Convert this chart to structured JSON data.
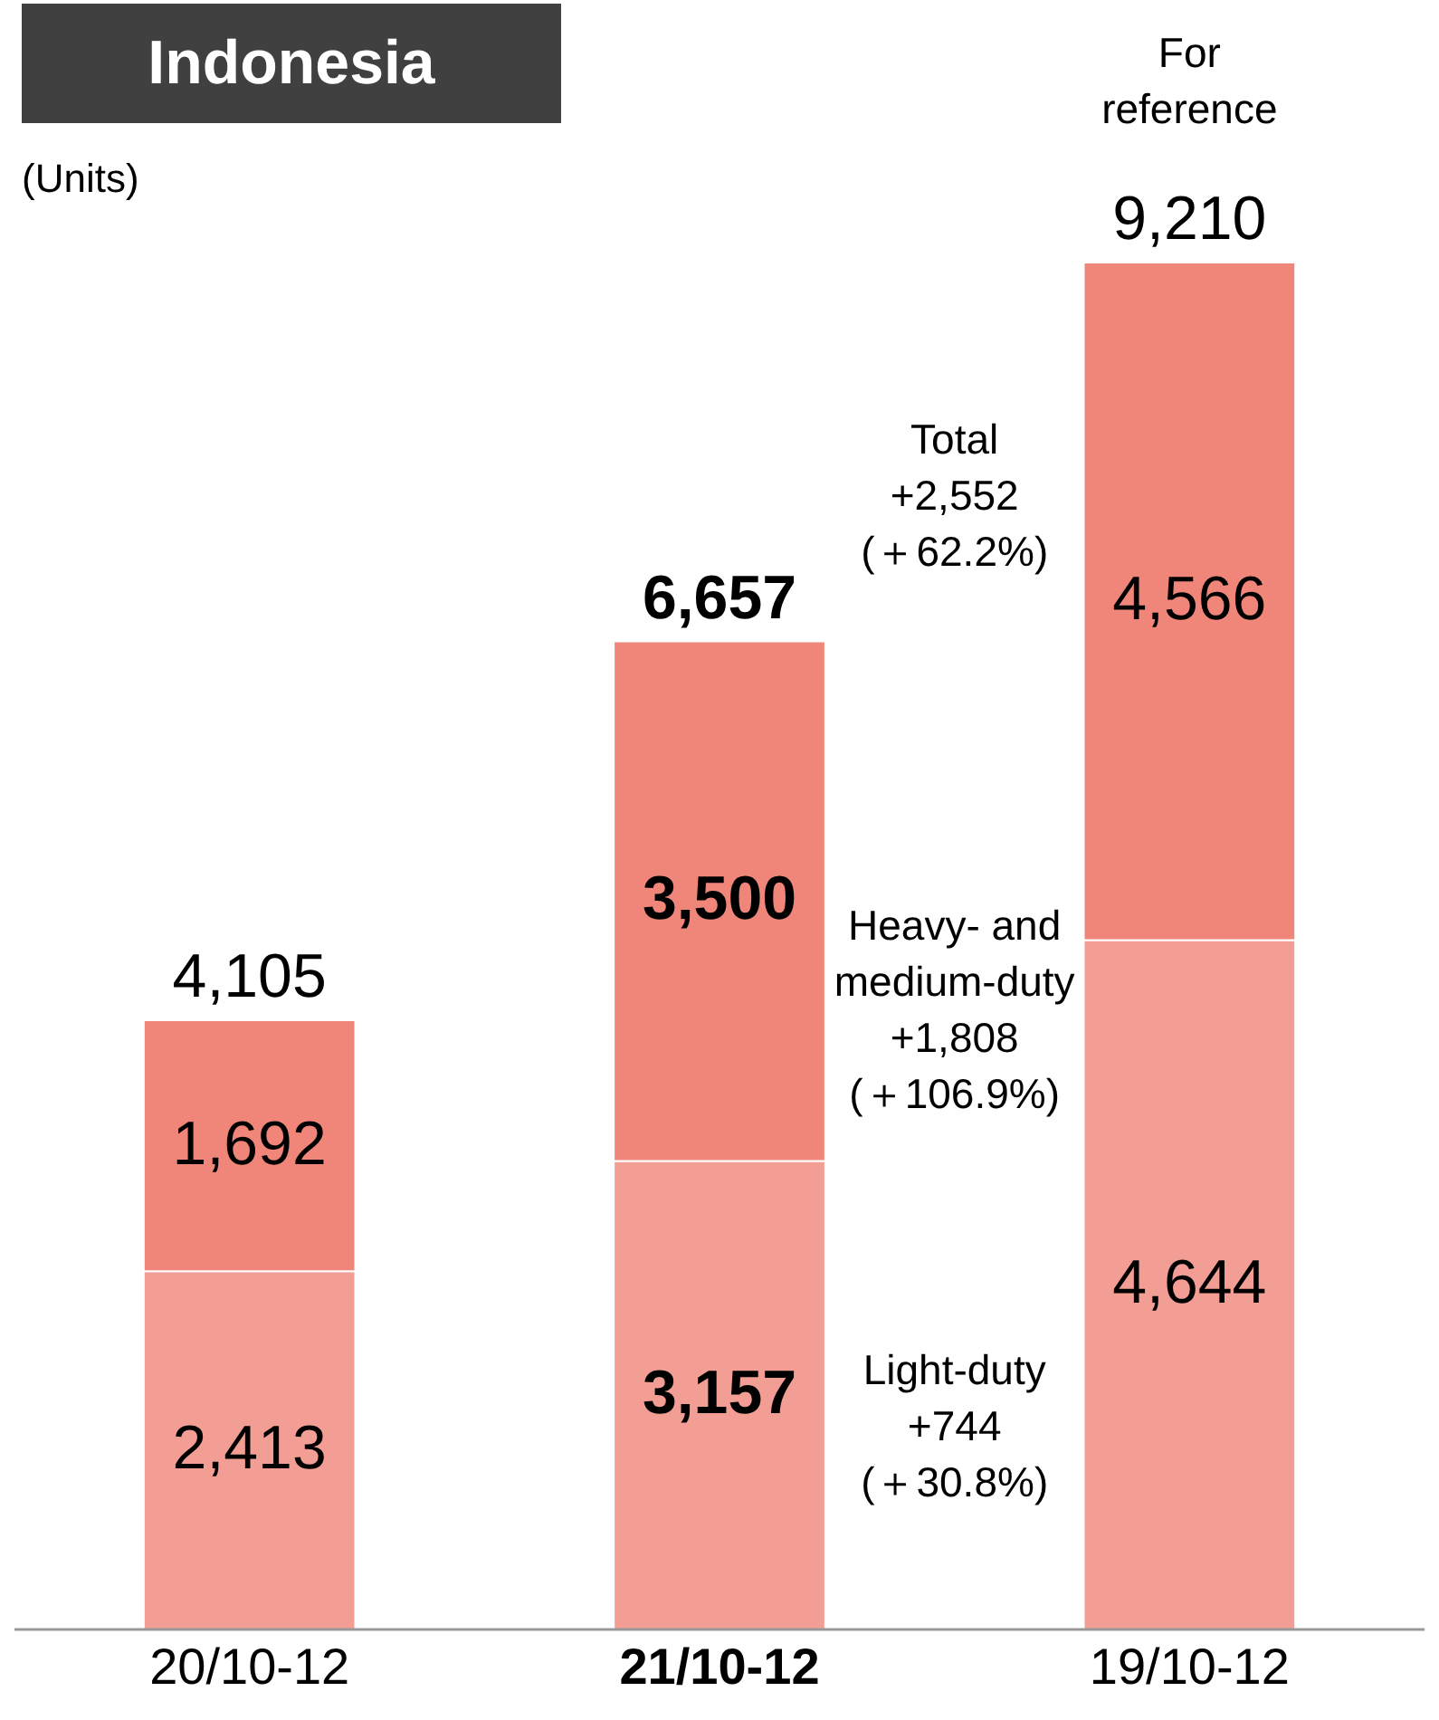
{
  "chart_data": {
    "type": "bar",
    "title": "Indonesia",
    "ylabel": "(Units)",
    "categories": [
      "20/10-12",
      "21/10-12",
      "19/10-12"
    ],
    "series": [
      {
        "color": "#f29e94",
        "values": [
          2413,
          3157,
          4644
        ],
        "value_labels": [
          "2,413",
          "3,157",
          "4,644"
        ]
      },
      {
        "color": "#f0857a",
        "values": [
          1692,
          3500,
          4566
        ],
        "value_labels": [
          "1,692",
          "3,500",
          "4,566"
        ]
      }
    ],
    "stacked": true,
    "totals": [
      "4,105",
      "6,657",
      "9,210"
    ],
    "annotations": [
      "Total\n+2,552\n(＋62.2%)",
      "Heavy- and\nmedium-duty\n+1,808\n(＋106.9%)",
      "Light-duty\n\n+744\n(＋30.8%)",
      "For\nreference"
    ]
  }
}
